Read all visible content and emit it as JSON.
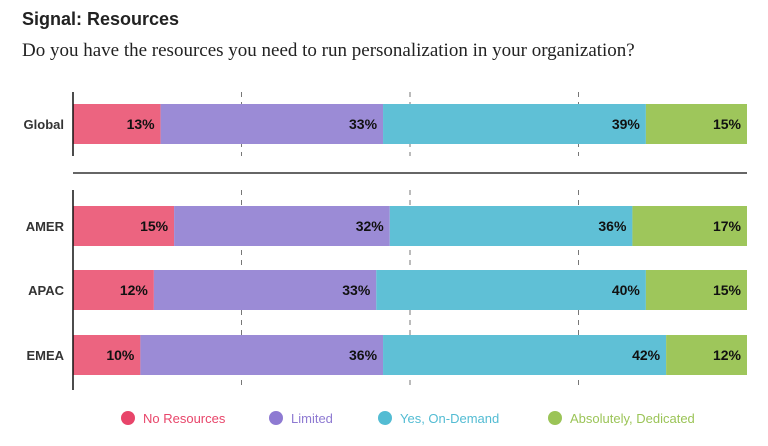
{
  "chart_data": {
    "type": "bar",
    "orientation": "horizontal-stacked-100",
    "title": "Signal: Resources",
    "subtitle": "Do you have the resources you need to run personalization in your organization?",
    "categories": [
      "Global",
      "AMER",
      "APAC",
      "EMEA"
    ],
    "series": [
      {
        "name": "No Resources",
        "color": "#ec6480",
        "legend_color": "#e8456a",
        "values": [
          13,
          15,
          12,
          10
        ]
      },
      {
        "name": "Limited",
        "color": "#9b8bd6",
        "legend_color": "#8e7ad2",
        "values": [
          33,
          32,
          33,
          36
        ]
      },
      {
        "name": "Yes, On-Demand",
        "color": "#5fc0d6",
        "legend_color": "#53bcd3",
        "values": [
          39,
          36,
          40,
          42
        ]
      },
      {
        "name": "Absolutely, Dedicated",
        "color": "#9ec65b",
        "legend_color": "#9bc457",
        "values": [
          15,
          17,
          15,
          12
        ]
      }
    ],
    "xlim": [
      0,
      100
    ],
    "gridlines": [
      25,
      50,
      75
    ],
    "legend_position": "bottom"
  }
}
